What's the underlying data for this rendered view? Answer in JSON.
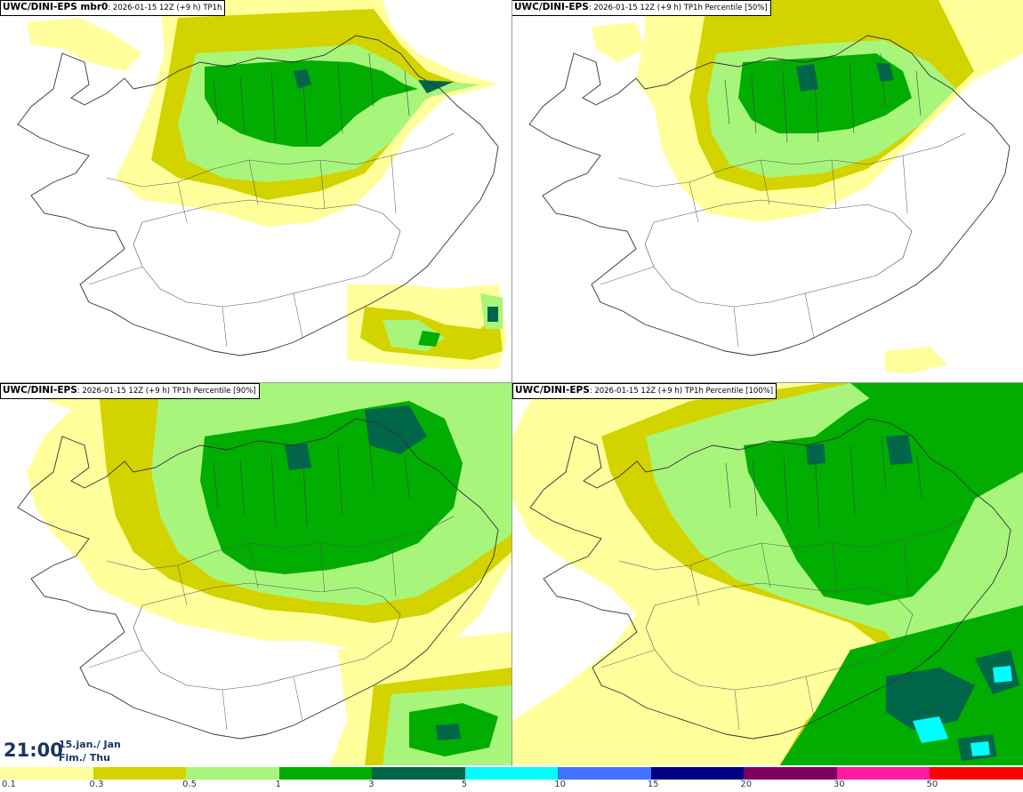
{
  "panels": [
    {
      "model": "UWC/DINI-EPS mbr0",
      "meta": ": 2026-01-15 12Z (+9 h) TP1h"
    },
    {
      "model": "UWC/DINI-EPS",
      "meta": ": 2026-01-15 12Z (+9 h) TP1h Percentile [50%]"
    },
    {
      "model": "UWC/DINI-EPS",
      "meta": ": 2026-01-15 12Z (+9 h) TP1h Percentile [90%]"
    },
    {
      "model": "UWC/DINI-EPS",
      "meta": ": 2026-01-15 12Z (+9 h) TP1h Percentile [100%]"
    }
  ],
  "time": {
    "clock": "21:00",
    "date_line": "15.jan./ Jan",
    "day_line": "Fim./ Thu"
  },
  "legend": {
    "ticks": [
      "0.1",
      "0.3",
      "0.5",
      "1",
      "3",
      "5",
      "10",
      "15",
      "20",
      "30",
      "50"
    ],
    "colors": [
      "#ffff9c",
      "#d3d300",
      "#a8f57c",
      "#00ad00",
      "#00664a",
      "#00ffff",
      "#4472ff",
      "#000080",
      "#800060",
      "#ff1aa0",
      "#ff0000"
    ]
  },
  "map_colors": {
    "outline": "#333333",
    "roads": "#555555"
  }
}
